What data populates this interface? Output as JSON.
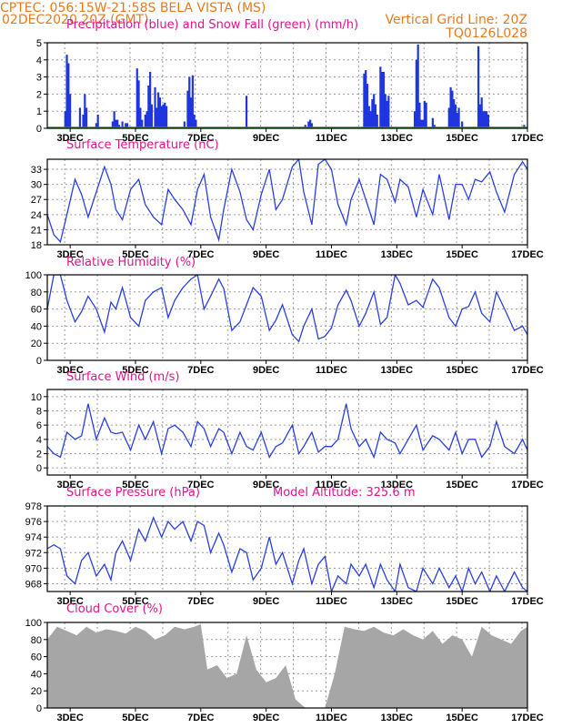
{
  "header": {
    "line1_left": "CPTEC:   056:15W-21:58S   BELA VISTA (MS)",
    "line2_left": "02DEC2020  20Z (GMT)",
    "line1_right": "Vertical Grid Line: 20Z",
    "line2_right": "TQ0126L028"
  },
  "colors": {
    "header": "#e87a1e",
    "title": "#e0148c",
    "line": "#2a3fe0",
    "bar": "#1f35e0",
    "snow": "#19a619",
    "cloud": "#a6a6a6",
    "grid": "#9a9a9a"
  },
  "x_axis": {
    "labels": [
      "3DEC",
      "5DEC",
      "7DEC",
      "9DEC",
      "11DEC",
      "13DEC",
      "15DEC",
      "17DEC"
    ],
    "label_days": [
      3,
      5,
      7,
      9,
      11,
      13,
      15,
      17
    ],
    "range_days": [
      2.3,
      17.0
    ]
  },
  "chart_data": [
    {
      "type": "bar",
      "title": "Precipitation (blue) and Snow Fall (green) (mm/h)",
      "ylim": [
        0,
        5
      ],
      "yticks": [
        "0",
        "1",
        "2",
        "3",
        "4",
        "5"
      ],
      "series": [
        {
          "name": "Precipitation",
          "x": [
            2.85,
            2.9,
            2.95,
            3.0,
            3.3,
            3.4,
            3.45,
            3.5,
            3.8,
            3.85,
            4.3,
            4.35,
            4.4,
            4.45,
            4.5,
            4.6,
            4.7,
            4.75,
            5.05,
            5.1,
            5.15,
            5.2,
            5.3,
            5.35,
            5.4,
            5.45,
            5.5,
            5.6,
            5.65,
            5.7,
            5.75,
            5.8,
            5.85,
            5.9,
            5.95,
            6.5,
            6.6,
            6.65,
            6.7,
            6.75,
            6.8,
            6.85,
            8.4,
            10.2,
            10.3,
            10.35,
            10.4,
            12.0,
            12.05,
            12.1,
            12.15,
            12.2,
            12.25,
            12.3,
            12.35,
            12.4,
            12.5,
            12.55,
            12.6,
            12.65,
            12.7,
            12.75,
            13.55,
            13.6,
            13.65,
            13.7,
            13.75,
            13.8,
            13.85,
            13.9,
            14.1,
            14.15,
            14.6,
            14.65,
            14.7,
            14.75,
            14.8,
            14.85,
            14.9,
            15.0,
            15.5,
            15.55,
            15.6,
            15.65,
            15.7,
            15.75,
            15.8,
            16.9
          ],
          "values": [
            1.0,
            4.3,
            3.8,
            2.0,
            1.2,
            0.8,
            2.0,
            1.2,
            0.3,
            0.8,
            0.4,
            1.0,
            0.5,
            0.5,
            0.2,
            0.4,
            0.3,
            0.3,
            3.5,
            2.8,
            1.2,
            0.5,
            0.8,
            1.0,
            2.5,
            3.3,
            1.4,
            2.4,
            1.2,
            2.1,
            1.8,
            1.3,
            1.4,
            1.5,
            1.3,
            0.4,
            2.2,
            3.0,
            1.8,
            3.1,
            0.8,
            0.5,
            1.9,
            0.2,
            0.4,
            0.5,
            0.3,
            3.2,
            3.4,
            2.6,
            1.3,
            1.0,
            1.7,
            2.0,
            1.4,
            0.8,
            3.6,
            3.3,
            3.3,
            2.0,
            1.6,
            1.9,
            1.0,
            4.0,
            4.9,
            1.5,
            0.5,
            0.5,
            1.6,
            1.5,
            0.6,
            0.2,
            1.2,
            2.4,
            2.2,
            1.7,
            1.4,
            0.9,
            1.2,
            0.4,
            4.8,
            1.4,
            1.8,
            1.0,
            1.0,
            1.0,
            0.8,
            0.2
          ]
        },
        {
          "name": "Snow Fall",
          "values": [
            0
          ]
        }
      ]
    },
    {
      "type": "line",
      "title": "Surface Temperature (nC)",
      "ylim": [
        18,
        35
      ],
      "yticks": [
        "18",
        "21",
        "24",
        "27",
        "30",
        "33"
      ],
      "series": [
        {
          "name": "Temperature",
          "x": [
            2.3,
            2.5,
            2.7,
            2.9,
            3.15,
            3.35,
            3.55,
            3.8,
            4.05,
            4.25,
            4.4,
            4.6,
            4.85,
            5.1,
            5.3,
            5.55,
            5.8,
            6.0,
            6.2,
            6.45,
            6.7,
            6.9,
            7.1,
            7.3,
            7.55,
            7.7,
            7.95,
            8.2,
            8.4,
            8.6,
            8.85,
            9.1,
            9.3,
            9.5,
            9.8,
            10.0,
            10.15,
            10.4,
            10.6,
            10.8,
            11.0,
            11.2,
            11.45,
            11.6,
            11.85,
            12.05,
            12.3,
            12.5,
            12.7,
            12.95,
            13.1,
            13.35,
            13.6,
            13.8,
            14.1,
            14.3,
            14.6,
            14.8,
            15.0,
            15.2,
            15.4,
            15.6,
            15.85,
            16.05,
            16.3,
            16.6,
            16.85,
            17.0
          ],
          "values": [
            24,
            20,
            18.6,
            24,
            31,
            28,
            23.5,
            28.5,
            33.5,
            30,
            25,
            23,
            29,
            31,
            26,
            23.5,
            22,
            29,
            27,
            25,
            22,
            29,
            32,
            23.5,
            19,
            25,
            33,
            28.5,
            23,
            21,
            28,
            33,
            25,
            27,
            33.5,
            35,
            28.5,
            22,
            34,
            35,
            33,
            26,
            22,
            27,
            31,
            27,
            22,
            32,
            31,
            26.5,
            31,
            29.5,
            23.5,
            29,
            24,
            32,
            23,
            30,
            30,
            27,
            31,
            30.5,
            32.5,
            28.5,
            24.5,
            32,
            34.5,
            33
          ]
        }
      ]
    },
    {
      "type": "line",
      "title": "Relative Humidity (%)",
      "ylim": [
        0,
        100
      ],
      "yticks": [
        "0",
        "20",
        "40",
        "60",
        "80",
        "100"
      ],
      "series": [
        {
          "name": "Relative Humidity",
          "x": [
            2.3,
            2.5,
            2.7,
            2.9,
            3.15,
            3.35,
            3.55,
            3.8,
            4.05,
            4.25,
            4.4,
            4.6,
            4.85,
            5.1,
            5.3,
            5.55,
            5.8,
            6.0,
            6.2,
            6.45,
            6.7,
            6.9,
            7.1,
            7.3,
            7.55,
            7.7,
            7.95,
            8.2,
            8.4,
            8.6,
            8.85,
            9.1,
            9.3,
            9.5,
            9.8,
            10.0,
            10.15,
            10.4,
            10.6,
            10.8,
            11.0,
            11.2,
            11.45,
            11.6,
            11.85,
            12.05,
            12.3,
            12.5,
            12.7,
            12.95,
            13.1,
            13.35,
            13.6,
            13.8,
            14.1,
            14.3,
            14.6,
            14.8,
            15.0,
            15.2,
            15.4,
            15.6,
            15.85,
            16.05,
            16.3,
            16.6,
            16.85,
            17.0
          ],
          "values": [
            60,
            100,
            100,
            70,
            45,
            57,
            75,
            60,
            33,
            68,
            60,
            85,
            50,
            40,
            70,
            80,
            85,
            50,
            70,
            85,
            95,
            100,
            60,
            75,
            95,
            84,
            35,
            45,
            65,
            85,
            75,
            35,
            47,
            65,
            30,
            22,
            40,
            60,
            25,
            28,
            38,
            65,
            82,
            70,
            40,
            55,
            80,
            42,
            50,
            100,
            90,
            65,
            70,
            62,
            95,
            85,
            50,
            40,
            60,
            63,
            80,
            55,
            45,
            80,
            60,
            35,
            40,
            30
          ]
        }
      ]
    },
    {
      "type": "line",
      "title": "Surface Wind (m/s)",
      "ylim": [
        -1,
        11
      ],
      "yticks": [
        "0",
        "2",
        "4",
        "6",
        "8",
        "10"
      ],
      "series": [
        {
          "name": "Wind speed",
          "x": [
            2.3,
            2.5,
            2.7,
            2.9,
            3.15,
            3.35,
            3.55,
            3.8,
            4.05,
            4.25,
            4.4,
            4.6,
            4.85,
            5.1,
            5.3,
            5.55,
            5.8,
            6.0,
            6.2,
            6.45,
            6.7,
            6.9,
            7.1,
            7.3,
            7.55,
            7.7,
            7.95,
            8.2,
            8.4,
            8.6,
            8.85,
            9.1,
            9.3,
            9.5,
            9.8,
            10.0,
            10.15,
            10.4,
            10.6,
            10.8,
            11.0,
            11.2,
            11.45,
            11.6,
            11.85,
            12.05,
            12.3,
            12.5,
            12.7,
            12.95,
            13.1,
            13.35,
            13.6,
            13.8,
            14.1,
            14.3,
            14.6,
            14.8,
            15.0,
            15.2,
            15.4,
            15.6,
            15.85,
            16.05,
            16.3,
            16.6,
            16.85,
            17.0
          ],
          "values": [
            3,
            2,
            1.5,
            5,
            4,
            4.5,
            9,
            4,
            7,
            5,
            4.8,
            5,
            2.5,
            6,
            4,
            6.5,
            2,
            5.5,
            6,
            5,
            3,
            6.5,
            5.5,
            3,
            5.5,
            5,
            2,
            5,
            3,
            2.5,
            5,
            1.5,
            3,
            3.5,
            6,
            2,
            3,
            5,
            2.2,
            3,
            3,
            4,
            9,
            5.5,
            3,
            4,
            1.5,
            5,
            4,
            3.5,
            2,
            4,
            6,
            2.5,
            4.5,
            4,
            2.5,
            5,
            2,
            4,
            4,
            1.5,
            3,
            6.5,
            3,
            2,
            4,
            2.5
          ]
        }
      ]
    },
    {
      "type": "line",
      "title": "Surface Pressure (hPa)",
      "annotation": "Model Altitude:  325.6 m",
      "ylim": [
        967,
        978
      ],
      "yticks": [
        "968",
        "970",
        "972",
        "974",
        "976",
        "978"
      ],
      "series": [
        {
          "name": "Pressure",
          "x": [
            2.3,
            2.5,
            2.7,
            2.9,
            3.15,
            3.35,
            3.55,
            3.8,
            4.05,
            4.25,
            4.4,
            4.6,
            4.85,
            5.1,
            5.3,
            5.55,
            5.8,
            6.0,
            6.2,
            6.45,
            6.7,
            6.9,
            7.1,
            7.3,
            7.55,
            7.7,
            7.95,
            8.2,
            8.4,
            8.6,
            8.85,
            9.1,
            9.3,
            9.5,
            9.8,
            10.0,
            10.15,
            10.4,
            10.6,
            10.8,
            11.0,
            11.2,
            11.45,
            11.6,
            11.85,
            12.05,
            12.3,
            12.5,
            12.7,
            12.95,
            13.1,
            13.35,
            13.6,
            13.8,
            14.1,
            14.3,
            14.6,
            14.8,
            15.0,
            15.2,
            15.4,
            15.6,
            15.85,
            16.05,
            16.3,
            16.6,
            16.85,
            17.0
          ],
          "values": [
            972.5,
            973,
            972.5,
            969,
            968,
            971,
            972,
            969,
            970.5,
            968.5,
            972,
            973.5,
            971,
            975,
            973.5,
            976.5,
            974,
            976,
            975,
            976,
            973.5,
            976,
            975.5,
            972,
            974.5,
            973,
            969.5,
            972.5,
            972,
            968.5,
            970,
            974,
            970.5,
            972,
            968,
            971,
            972.5,
            968,
            970.5,
            971.5,
            967,
            969,
            968,
            970.5,
            969,
            970.5,
            967.5,
            970.5,
            968.5,
            967,
            970.5,
            967.5,
            967,
            970,
            968,
            970,
            967.5,
            969,
            967,
            970,
            968,
            969.5,
            967,
            969,
            967,
            969.5,
            967.5,
            967
          ]
        }
      ]
    },
    {
      "type": "area",
      "title": "Cloud Cover (%)",
      "ylim": [
        0,
        100
      ],
      "yticks": [
        "0",
        "20",
        "40",
        "60",
        "80",
        "100"
      ],
      "series": [
        {
          "name": "Cloud Cover",
          "x": [
            2.3,
            2.6,
            2.9,
            3.2,
            3.5,
            3.8,
            4.1,
            4.4,
            4.7,
            5.0,
            5.3,
            5.6,
            5.9,
            6.2,
            6.5,
            6.8,
            7.0,
            7.2,
            7.5,
            7.8,
            8.1,
            8.4,
            8.7,
            9.0,
            9.3,
            9.6,
            9.9,
            10.2,
            10.5,
            10.8,
            11.1,
            11.4,
            11.7,
            12.0,
            12.3,
            12.6,
            12.9,
            13.2,
            13.5,
            13.8,
            14.1,
            14.4,
            14.7,
            15.0,
            15.3,
            15.6,
            15.9,
            16.2,
            16.5,
            16.8,
            17.0
          ],
          "values": [
            80,
            95,
            90,
            85,
            95,
            88,
            92,
            90,
            87,
            95,
            90,
            80,
            85,
            95,
            92,
            95,
            98,
            45,
            50,
            35,
            40,
            85,
            45,
            30,
            35,
            50,
            10,
            0,
            0,
            0,
            40,
            95,
            92,
            90,
            95,
            88,
            85,
            92,
            85,
            80,
            90,
            75,
            85,
            80,
            60,
            95,
            85,
            80,
            75,
            90,
            95
          ]
        }
      ]
    }
  ]
}
